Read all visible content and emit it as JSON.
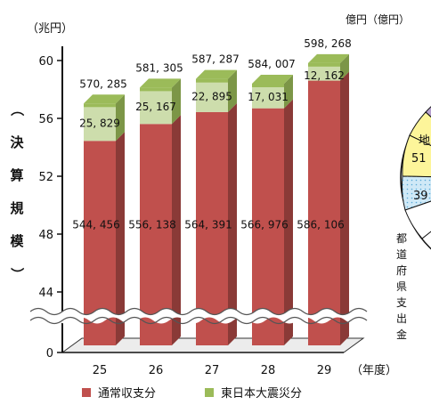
{
  "chart_data": {
    "type": "bar",
    "stacked": true,
    "style": "3d",
    "y_unit_label": "（兆円）",
    "y_axis_title": "（決算規模）",
    "x_unit_label": "（年度）",
    "value_unit_label": "億円（億円）",
    "categories": [
      "25",
      "26",
      "27",
      "28",
      "29"
    ],
    "yticks": [
      0,
      44,
      48,
      52,
      56,
      60
    ],
    "y_axis_break": true,
    "ylim": [
      40,
      60
    ],
    "series": [
      {
        "name": "通常収支分",
        "color": "#c0504d",
        "values": [
          544456,
          556138,
          564391,
          566976,
          586106
        ],
        "labels": [
          "544, 456",
          "556, 138",
          "564, 391",
          "566, 976",
          "586, 106"
        ]
      },
      {
        "name": "東日本大震災分",
        "color": "#9bbb59",
        "values": [
          25829,
          25167,
          22895,
          17031,
          12162
        ],
        "labels": [
          "25, 829",
          "25, 167",
          "22, 895",
          "17, 031",
          "12, 162"
        ]
      }
    ],
    "totals": [
      570285,
      581305,
      587287,
      584007,
      598268
    ],
    "total_labels": [
      "570, 285",
      "581, 305",
      "587, 287",
      "584, 007",
      "598, 268"
    ],
    "legend_position": "bottom",
    "side_fragment": {
      "labels": [
        "地",
        "51",
        "39"
      ],
      "caption": "都道府県支出金"
    }
  }
}
